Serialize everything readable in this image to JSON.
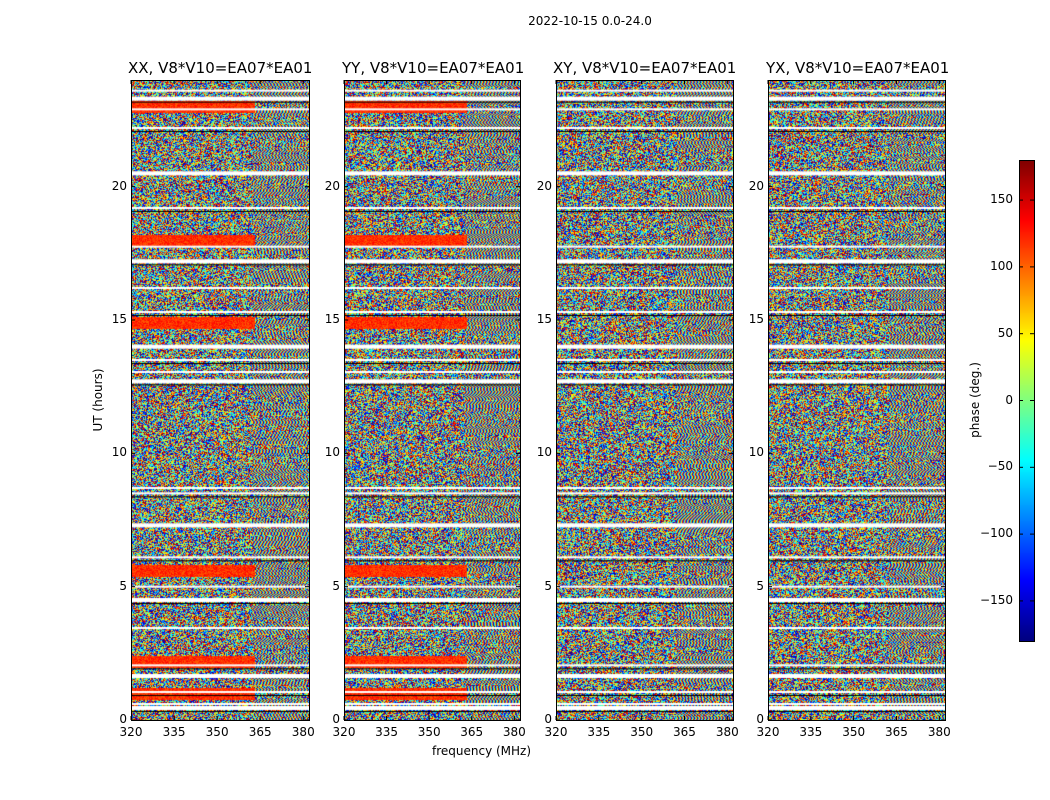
{
  "figure": {
    "suptitle": "2022-10-15 0.0-24.0"
  },
  "chart_data": {
    "type": "heatmap",
    "title": "2022-10-15 0.0-24.0",
    "xlabel": "frequency (MHz)",
    "ylabel": "UT (hours)",
    "xlim": [
      320,
      382
    ],
    "ylim": [
      0,
      24
    ],
    "xticks": [
      "320",
      "335",
      "350",
      "365",
      "380"
    ],
    "yticks": [
      "0",
      "5",
      "10",
      "15",
      "20"
    ],
    "panels": [
      {
        "title": "XX, V8*V10=EA07*EA01",
        "polarization": "XX"
      },
      {
        "title": "YY, V8*V10=EA07*EA01",
        "polarization": "YY"
      },
      {
        "title": "XY, V8*V10=EA07*EA01",
        "polarization": "XY"
      },
      {
        "title": "YX, V8*V10=EA07*EA01",
        "polarization": "YX"
      }
    ],
    "colorbar": {
      "label": "phase (deg.)",
      "range": [
        -180,
        180
      ],
      "ticks": [
        "−150",
        "−100",
        "−50",
        "0",
        "50",
        "100",
        "150"
      ],
      "colormap": "jet"
    },
    "flagged_gaps_hours": [
      0.45,
      0.6,
      1.05,
      1.65,
      2.05,
      3.45,
      4.5,
      5.0,
      6.1,
      7.3,
      8.5,
      8.7,
      12.7,
      13.05,
      13.5,
      14.0,
      15.3,
      16.2,
      17.2,
      17.75,
      19.2,
      20.5,
      22.2,
      22.9,
      23.3,
      23.6
    ]
  }
}
